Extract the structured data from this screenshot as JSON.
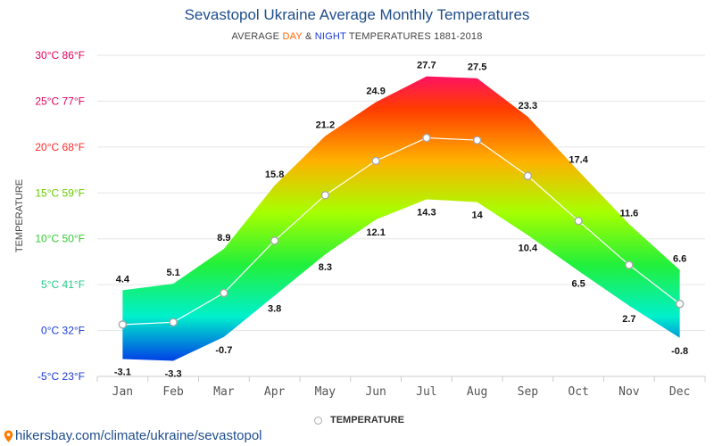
{
  "title": "Sevastopol Ukraine Average Monthly Temperatures",
  "subtitle": {
    "prefix": "AVERAGE ",
    "day": "DAY",
    "amp": " & ",
    "night": "NIGHT",
    "suffix": " TEMPERATURES 1881-2018"
  },
  "legend": {
    "label": "TEMPERATURE"
  },
  "source": "hikersbay.com/climate/ukraine/sevastopol",
  "icons": {
    "source": "map-pin-icon"
  },
  "colors": {
    "title": "#1f4e8c",
    "day": "#ff6600",
    "night": "#1b3ad6"
  },
  "chart_data": {
    "type": "area",
    "title": "Sevastopol Ukraine Average Monthly Temperatures",
    "ylabel": "TEMPERATURE",
    "ylim": [
      -5,
      30
    ],
    "yticks": [
      {
        "value": 30,
        "label": "30°C 86°F",
        "color": "#e0005a"
      },
      {
        "value": 25,
        "label": "25°C 77°F",
        "color": "#e0005a"
      },
      {
        "value": 20,
        "label": "20°C 68°F",
        "color": "#ff2a2a"
      },
      {
        "value": 15,
        "label": "15°C 59°F",
        "color": "#66cc00"
      },
      {
        "value": 10,
        "label": "10°C 50°F",
        "color": "#33cc33"
      },
      {
        "value": 5,
        "label": "5°C 41°F",
        "color": "#22cc88"
      },
      {
        "value": 0,
        "label": "0°C 32°F",
        "color": "#1b3ad6"
      },
      {
        "value": -5,
        "label": "-5°C 23°F",
        "color": "#1b3ad6"
      }
    ],
    "categories": [
      "Jan",
      "Feb",
      "Mar",
      "Apr",
      "May",
      "Jun",
      "Jul",
      "Aug",
      "Sep",
      "Oct",
      "Nov",
      "Dec"
    ],
    "series": [
      {
        "name": "day",
        "values": [
          4.4,
          5.1,
          8.9,
          15.8,
          21.2,
          24.9,
          27.7,
          27.5,
          23.3,
          17.4,
          11.6,
          6.6
        ]
      },
      {
        "name": "night",
        "values": [
          -3.1,
          -3.3,
          -0.7,
          3.8,
          8.3,
          12.1,
          14.3,
          14,
          10.4,
          6.5,
          2.7,
          -0.8
        ]
      },
      {
        "name": "TEMPERATURE",
        "values": [
          0.65,
          0.9,
          4.1,
          9.8,
          14.75,
          18.5,
          21.0,
          20.75,
          16.85,
          11.95,
          7.15,
          2.9
        ]
      }
    ],
    "grid": true,
    "legend_position": "bottom-center"
  }
}
